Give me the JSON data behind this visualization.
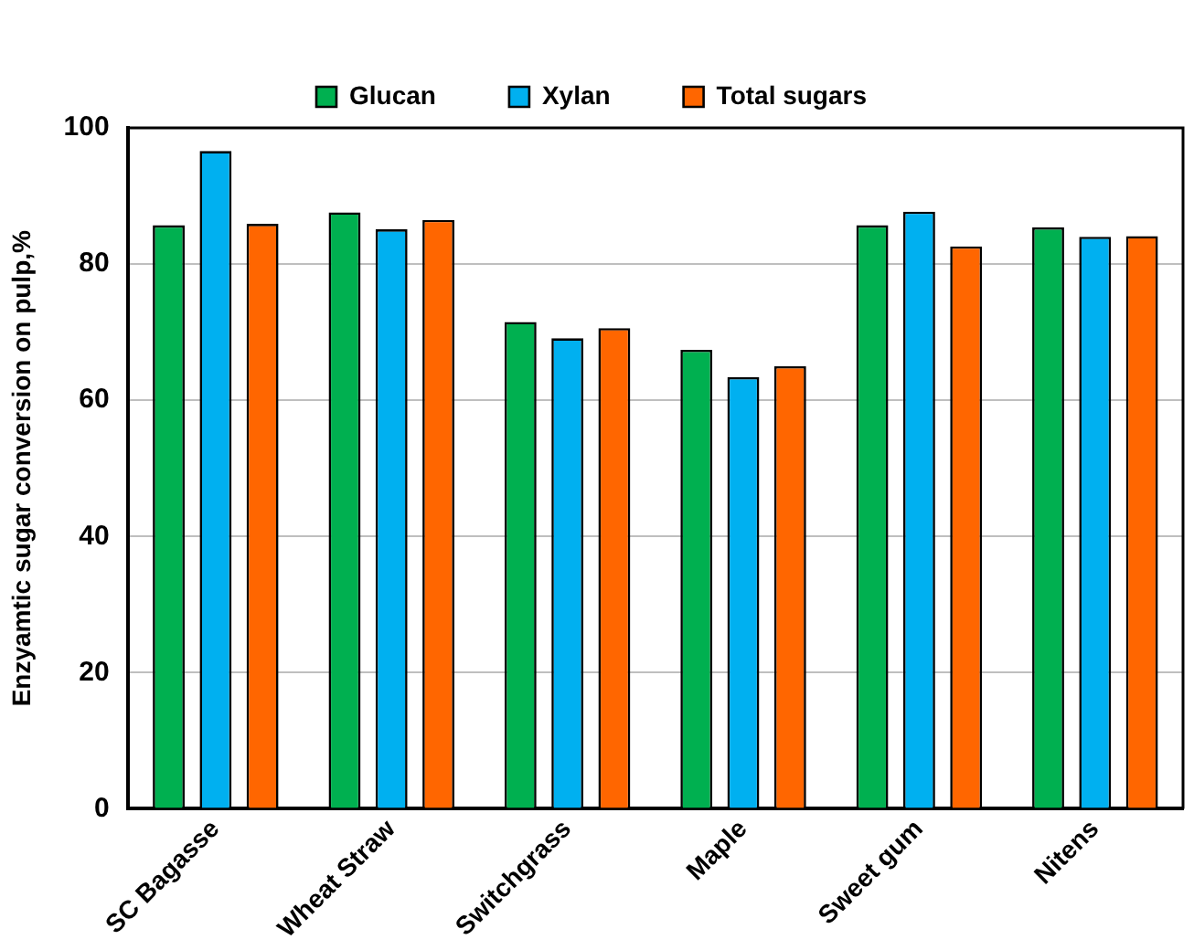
{
  "chart_data": {
    "type": "bar",
    "ylabel": "Enzyamtic sugar conversion on pulp,%",
    "categories": [
      "SC Bagasse",
      "Wheat Straw",
      "Switchgrass",
      "Maple",
      "Sweet gum",
      "Nitens"
    ],
    "series": [
      {
        "name": "Glucan",
        "color": "#00b050",
        "values": [
          85.7,
          87.6,
          71.5,
          67.4,
          85.7,
          85.4
        ]
      },
      {
        "name": "Xylan",
        "color": "#00b0f0",
        "values": [
          96.6,
          85.1,
          69.1,
          63.4,
          87.7,
          84.0
        ]
      },
      {
        "name": "Total sugars",
        "color": "#ff6600",
        "values": [
          85.9,
          86.5,
          70.6,
          65.0,
          82.6,
          84.1
        ]
      }
    ],
    "ylim": [
      0,
      100
    ],
    "yticks": [
      0,
      20,
      40,
      60,
      80,
      100
    ],
    "grid": "y",
    "legend": "top"
  }
}
